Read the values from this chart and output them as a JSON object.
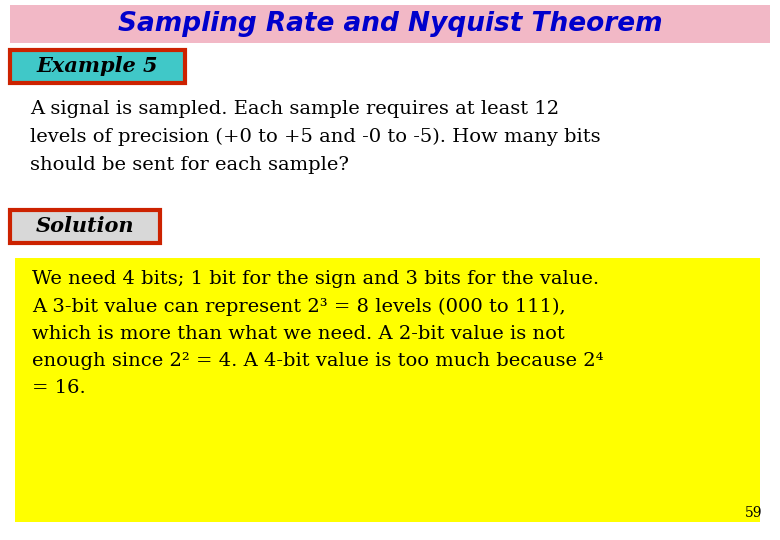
{
  "title": "Sampling Rate and Nyquist Theorem",
  "title_bg": "#f2b8c6",
  "title_color": "#0000cc",
  "title_fontsize": 19,
  "example_label": "Example 5",
  "example_bg": "#40c8c8",
  "example_border": "#cc2200",
  "example_text_color": "#000000",
  "body_text": "A signal is sampled. Each sample requires at least 12\nlevels of precision (+0 to +5 and -0 to -5). How many bits\nshould be sent for each sample?",
  "body_color": "#000000",
  "body_fontsize": 14,
  "solution_label": "Solution",
  "solution_bg": "#d8d8d8",
  "solution_border": "#cc2200",
  "solution_text_color": "#000000",
  "solution_box_bg": "#ffff00",
  "solution_text_line1": "We need 4 bits; 1 bit for the sign and 3 bits for the value.",
  "solution_text_line2": "A 3-bit value can represent 2³ = 8 levels (000 to 111),",
  "solution_text_line3": "which is more than what we need. A 2-bit value is not",
  "solution_text_line4": "enough since 2² = 4. A 4-bit value is too much because 2⁴",
  "solution_text_line5": "= 16.",
  "solution_fontsize": 14,
  "page_number": "59",
  "bg_color": "#ffffff"
}
